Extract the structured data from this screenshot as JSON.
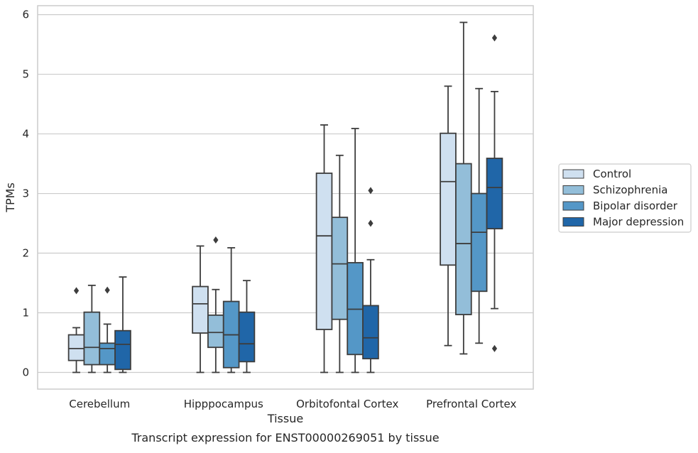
{
  "caption": "Transcript expression for ENST00000269051 by tissue",
  "chart_data": {
    "type": "boxplot",
    "title": "",
    "xlabel": "Tissue",
    "ylabel": "TPMs",
    "ylim": [
      -0.28,
      6.15
    ],
    "yticks": [
      0,
      1,
      2,
      3,
      4,
      5,
      6
    ],
    "grid": true,
    "legend_position": "right",
    "categories": [
      "Cerebellum",
      "Hipppocampus",
      "Orbitofontal Cortex",
      "Prefrontal Cortex"
    ],
    "series": [
      {
        "name": "Control",
        "color": "#cfe0f0",
        "boxes": [
          {
            "whislo": 0.0,
            "q1": 0.2,
            "median": 0.4,
            "q3": 0.63,
            "whishi": 0.75,
            "fliers": [
              1.37
            ]
          },
          {
            "whislo": 0.0,
            "q1": 0.66,
            "median": 1.15,
            "q3": 1.44,
            "whishi": 2.12,
            "fliers": []
          },
          {
            "whislo": 0.0,
            "q1": 0.72,
            "median": 2.29,
            "q3": 3.34,
            "whishi": 4.15,
            "fliers": []
          },
          {
            "whislo": 0.45,
            "q1": 1.8,
            "median": 3.2,
            "q3": 4.01,
            "whishi": 4.8,
            "fliers": []
          }
        ]
      },
      {
        "name": "Schizophrenia",
        "color": "#93bed9",
        "boxes": [
          {
            "whislo": 0.0,
            "q1": 0.13,
            "median": 0.42,
            "q3": 1.01,
            "whishi": 1.46,
            "fliers": []
          },
          {
            "whislo": 0.0,
            "q1": 0.42,
            "median": 0.67,
            "q3": 0.96,
            "whishi": 1.39,
            "fliers": [
              2.22
            ]
          },
          {
            "whislo": 0.0,
            "q1": 0.89,
            "median": 1.82,
            "q3": 2.6,
            "whishi": 3.64,
            "fliers": []
          },
          {
            "whislo": 0.31,
            "q1": 0.97,
            "median": 2.16,
            "q3": 3.5,
            "whishi": 5.87,
            "fliers": []
          }
        ]
      },
      {
        "name": "Bipolar disorder",
        "color": "#5497c7",
        "boxes": [
          {
            "whislo": 0.0,
            "q1": 0.13,
            "median": 0.4,
            "q3": 0.49,
            "whishi": 0.81,
            "fliers": [
              1.38
            ]
          },
          {
            "whislo": 0.0,
            "q1": 0.08,
            "median": 0.63,
            "q3": 1.19,
            "whishi": 2.09,
            "fliers": []
          },
          {
            "whislo": 0.0,
            "q1": 0.3,
            "median": 1.06,
            "q3": 1.84,
            "whishi": 4.09,
            "fliers": []
          },
          {
            "whislo": 0.49,
            "q1": 1.36,
            "median": 2.35,
            "q3": 3.0,
            "whishi": 4.76,
            "fliers": []
          }
        ]
      },
      {
        "name": "Major depression",
        "color": "#2066a8",
        "boxes": [
          {
            "whislo": 0.0,
            "q1": 0.05,
            "median": 0.47,
            "q3": 0.7,
            "whishi": 1.6,
            "fliers": []
          },
          {
            "whislo": 0.0,
            "q1": 0.18,
            "median": 0.48,
            "q3": 1.01,
            "whishi": 1.54,
            "fliers": []
          },
          {
            "whislo": 0.0,
            "q1": 0.23,
            "median": 0.58,
            "q3": 1.12,
            "whishi": 1.89,
            "fliers": [
              2.5,
              3.05
            ]
          },
          {
            "whislo": 1.07,
            "q1": 2.41,
            "median": 3.1,
            "q3": 3.59,
            "whishi": 4.71,
            "fliers": [
              0.4,
              5.61
            ]
          }
        ]
      }
    ]
  }
}
